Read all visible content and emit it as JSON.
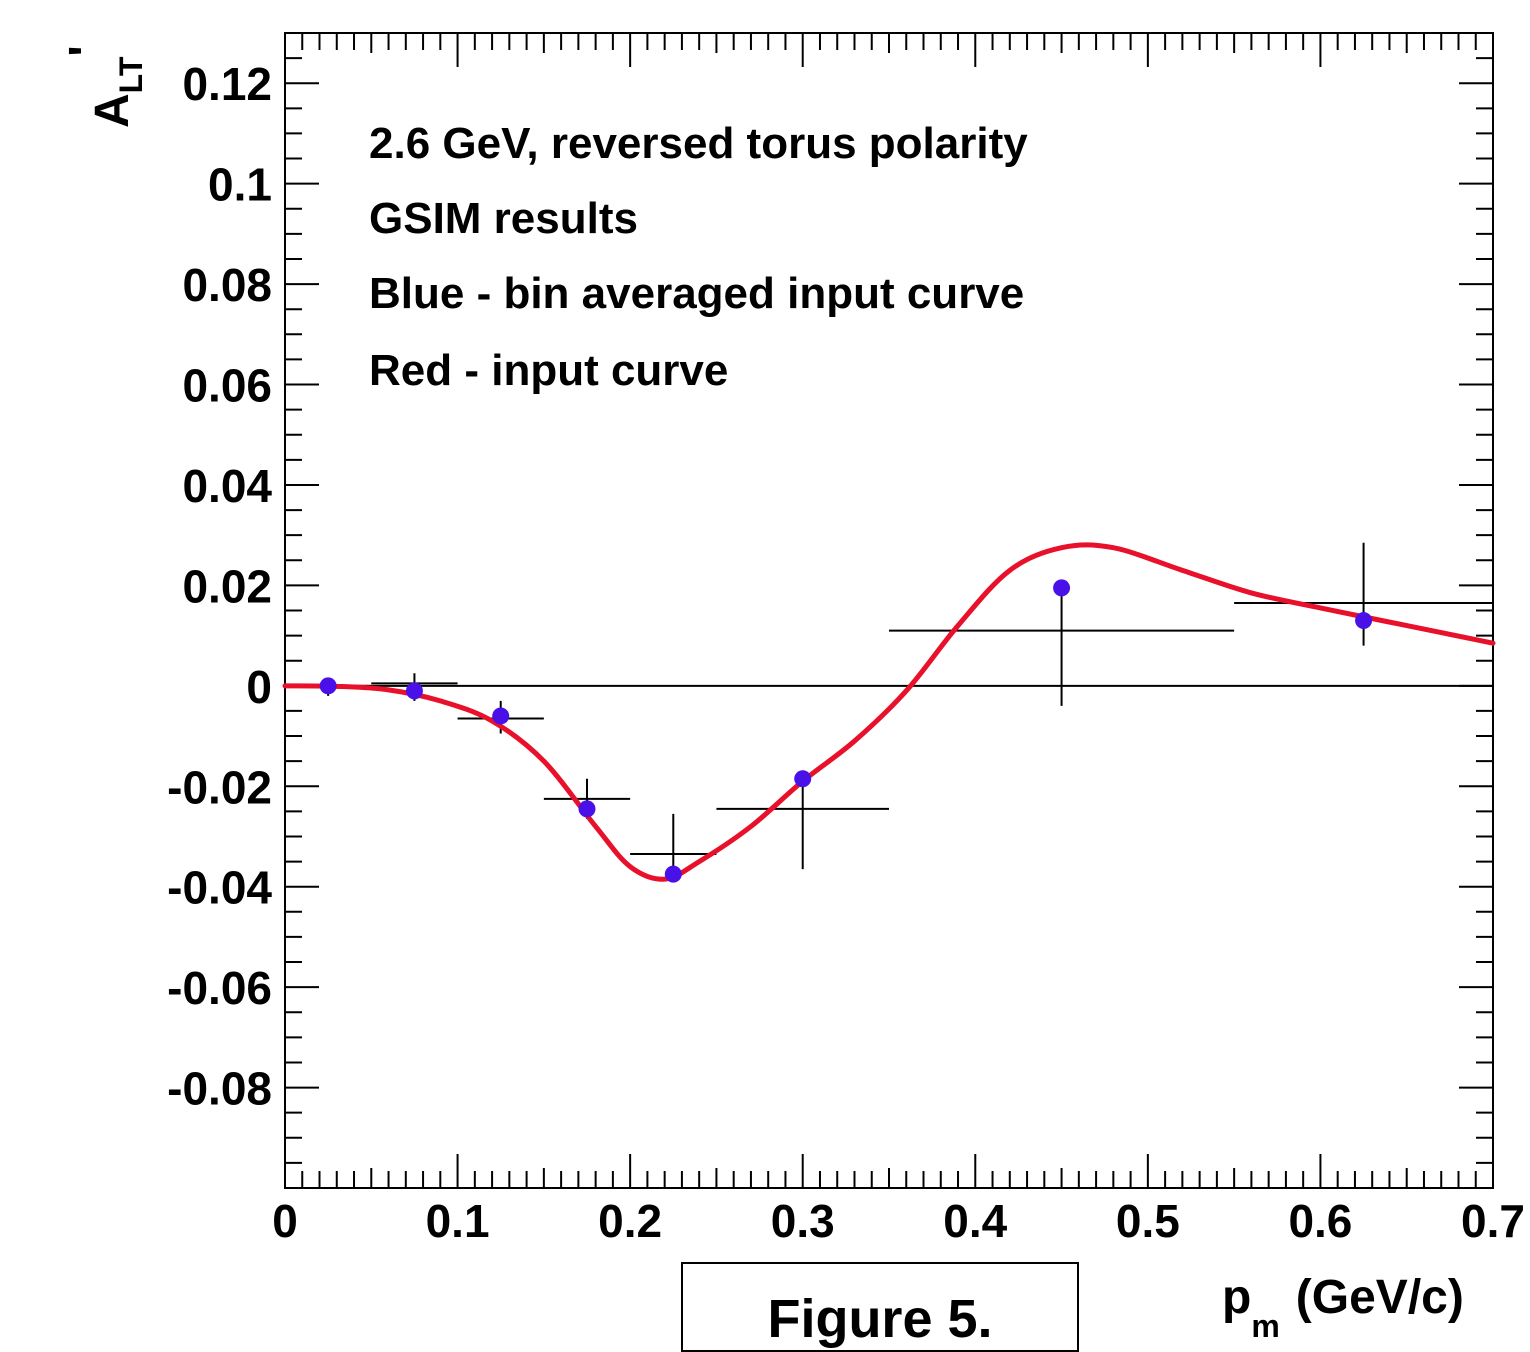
{
  "figure_caption": "Figure 5.",
  "colors": {
    "curve": "#e8102a",
    "points": "#4a10e8",
    "axes": "#000000"
  },
  "chart_data": {
    "type": "scatter",
    "xlabel": "(GeV/c)",
    "xlabel_symbol": "p",
    "xlabel_subscript": "m",
    "ylabel_symbol": "A",
    "ylabel_subscript": "LT",
    "ylabel_prime": "'",
    "xlim": [
      0,
      0.7
    ],
    "ylim": [
      -0.1,
      0.13
    ],
    "x_ticks": [
      "0",
      "0.1",
      "0.2",
      "0.3",
      "0.4",
      "0.5",
      "0.6",
      "0.7"
    ],
    "y_ticks": [
      "-0.08",
      "-0.06",
      "-0.04",
      "-0.02",
      "0",
      "0.02",
      "0.04",
      "0.06",
      "0.08",
      "0.1",
      "0.12"
    ],
    "annotations": [
      "2.6 GeV, reversed torus polarity",
      "GSIM results",
      "Blue - bin averaged input curve",
      "Red - input curve"
    ],
    "series": [
      {
        "type": "scatter",
        "points": [
          {
            "x": 0.025,
            "y": 0.0,
            "xerr": 0.025,
            "yerr_low": 0.002,
            "yerr_high": 0.001
          },
          {
            "x": 0.075,
            "y": -0.001,
            "xerr": 0.025,
            "yerr_low": 0.002,
            "yerr_high": 0.002
          },
          {
            "x": 0.125,
            "y": -0.006,
            "xerr": 0.025,
            "yerr_low": 0.003,
            "yerr_high": 0.003
          },
          {
            "x": 0.175,
            "y": -0.0245,
            "xerr": 0.025,
            "yerr_low": 0.002,
            "yerr_high": 0.004
          },
          {
            "x": 0.225,
            "y": -0.0375,
            "xerr": 0.025,
            "yerr_low": 0.0,
            "yerr_high": 0.008
          },
          {
            "x": 0.3,
            "y": -0.0185,
            "xerr": 0.05,
            "yerr_low": 0.012,
            "yerr_high": 0.0
          },
          {
            "x": 0.45,
            "y": 0.0195,
            "xerr": 0.1,
            "yerr_low": 0.015,
            "yerr_high": 0.0
          },
          {
            "x": 0.625,
            "y": 0.013,
            "xerr": 0.075,
            "yerr_low": 0.005,
            "yerr_high": 0.012
          }
        ],
        "bin_markers_y": [
          0.0,
          0.0005,
          -0.0065,
          -0.0225,
          -0.0335,
          -0.0245,
          0.011,
          0.0165
        ]
      },
      {
        "type": "line",
        "x": [
          0.0,
          0.03,
          0.06,
          0.09,
          0.12,
          0.15,
          0.18,
          0.2,
          0.22,
          0.24,
          0.27,
          0.3,
          0.33,
          0.36,
          0.39,
          0.42,
          0.45,
          0.48,
          0.52,
          0.56,
          0.6,
          0.65,
          0.7
        ],
        "y": [
          0.0,
          -0.0001,
          -0.0008,
          -0.003,
          -0.007,
          -0.015,
          -0.028,
          -0.036,
          -0.0385,
          -0.035,
          -0.028,
          -0.019,
          -0.011,
          -0.001,
          0.012,
          0.023,
          0.0275,
          0.0275,
          0.023,
          0.0185,
          0.0155,
          0.012,
          0.0085
        ]
      }
    ]
  }
}
